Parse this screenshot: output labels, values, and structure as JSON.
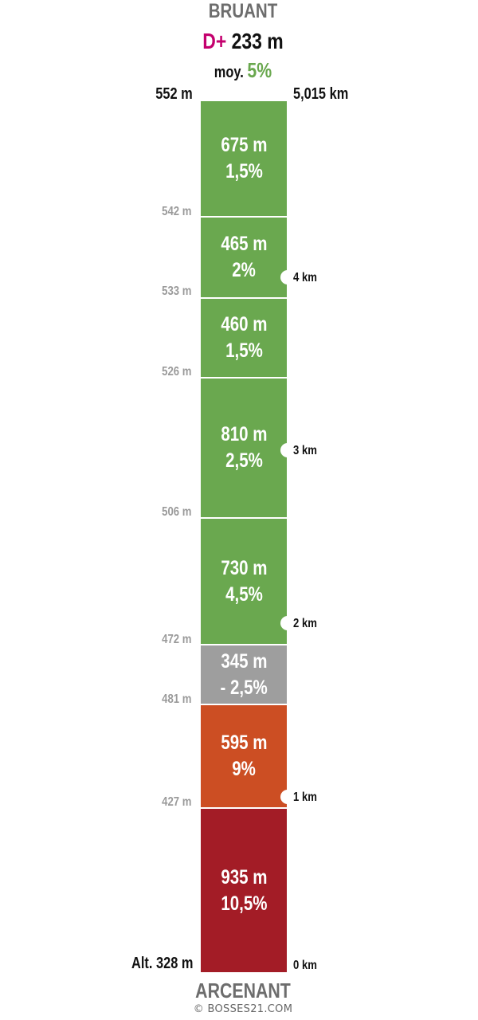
{
  "header": {
    "col_name": "BRUANT",
    "dplus_prefix": "D+",
    "dplus_value": "233 m",
    "avg_prefix": "moy.",
    "avg_value": "5%"
  },
  "summit_altitude": "552 m",
  "total_distance": "5,015 km",
  "base_altitude": "Alt. 328 m",
  "footer": {
    "start_name": "ARCENANT",
    "credit": "© BOSSES21.COM"
  },
  "colors": {
    "green": "#6aa84f",
    "grey": "#9e9e9e",
    "orange": "#cc4e23",
    "red": "#a31c26",
    "magenta": "#c4006e"
  },
  "segments": [
    {
      "length": "675 m",
      "grade": "1,5%",
      "color": "#6aa84f"
    },
    {
      "length": "465 m",
      "grade": "2%",
      "color": "#6aa84f"
    },
    {
      "length": "460 m",
      "grade": "1,5%",
      "color": "#6aa84f"
    },
    {
      "length": "810 m",
      "grade": "2,5%",
      "color": "#6aa84f"
    },
    {
      "length": "730 m",
      "grade": "4,5%",
      "color": "#6aa84f"
    },
    {
      "length": "345 m",
      "grade": "- 2,5%",
      "color": "#9e9e9e"
    },
    {
      "length": "595 m",
      "grade": "9%",
      "color": "#cc4e23"
    },
    {
      "length": "935 m",
      "grade": "10,5%",
      "color": "#a31c26"
    }
  ],
  "altitude_marks": [
    "542 m",
    "533 m",
    "526 m",
    "506 m",
    "472 m",
    "481 m",
    "427 m"
  ],
  "km_marks": [
    "4 km",
    "3 km",
    "2 km",
    "1 km",
    "0 km"
  ]
}
